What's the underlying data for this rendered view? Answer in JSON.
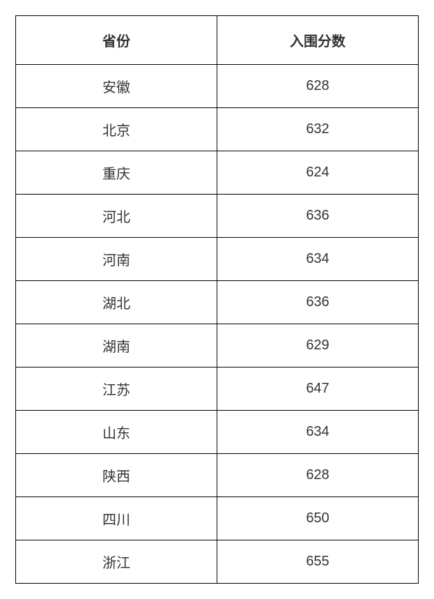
{
  "table": {
    "columns": [
      "省份",
      "入围分数"
    ],
    "rows": [
      [
        "安徽",
        "628"
      ],
      [
        "北京",
        "632"
      ],
      [
        "重庆",
        "624"
      ],
      [
        "河北",
        "636"
      ],
      [
        "河南",
        "634"
      ],
      [
        "湖北",
        "636"
      ],
      [
        "湖南",
        "629"
      ],
      [
        "江苏",
        "647"
      ],
      [
        "山东",
        "634"
      ],
      [
        "陕西",
        "628"
      ],
      [
        "四川",
        "650"
      ],
      [
        "浙江",
        "655"
      ]
    ],
    "header_fontsize": 20,
    "cell_fontsize": 20,
    "border_color": "#000000",
    "background_color": "#ffffff",
    "text_color": "#333333"
  }
}
